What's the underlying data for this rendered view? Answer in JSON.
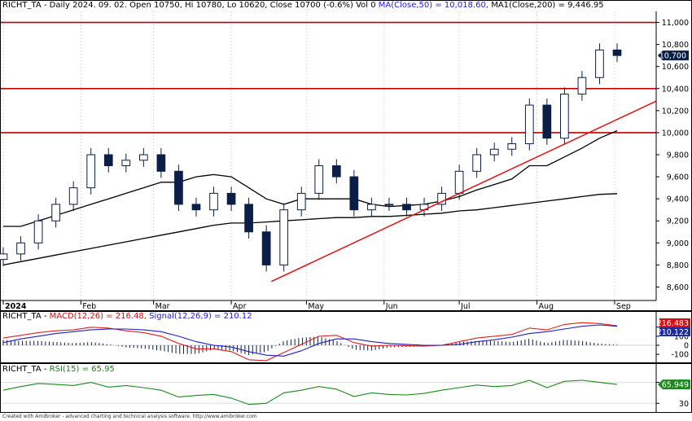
{
  "price_panel": {
    "symbol": "RICHT_TA",
    "header_main": "RICHT_TA - Daily 2024. 09. 02. Open 10750, Hi 10780, Lo 10620, Close 10700 (-0.6%) Vol 0",
    "ma50_text": "MA(Close,50) = 10,018.60,",
    "ma200_text": "MA1(Close,200) = 9,446.95",
    "last_price_label": "10,700",
    "y_ticks": [
      "8,600",
      "8,800",
      "9,000",
      "9,200",
      "9,400",
      "9,600",
      "9,800",
      "10,000",
      "10,200",
      "10,400",
      "10,600",
      "10,800",
      "11,000"
    ],
    "x_labels": [
      "2024",
      "Feb",
      "Mar",
      "Apr",
      "May",
      "Jun",
      "Jul",
      "Aug",
      "Sep"
    ]
  },
  "macd_panel": {
    "title_prefix": "RICHT_TA - ",
    "macd_text": "MACD(12,26) = 216.48,",
    "signal_text": "Signal(12,26,9) = 210.12",
    "macd_value_label": "216.483",
    "signal_value_label": "210.122",
    "y_ticks": [
      "200",
      "100",
      "0",
      "-100"
    ]
  },
  "rsi_panel": {
    "title_prefix": "RICHT_TA - ",
    "rsi_text": "RSI(15) = 65.95",
    "value_label": "65.949",
    "y_ticks": [
      "70",
      "30"
    ]
  },
  "footer": "Created with AmiBroker - advanced charting and technical analysis software. http://www.amibroker.com",
  "colors": {
    "candle": "#0a1e46",
    "ma50": "#000000",
    "ma200": "#000000",
    "level_line": "#c00000",
    "trend_line": "#e01010",
    "macd": "#e02020",
    "signal": "#2020c0",
    "histogram": "#0a1e46",
    "rsi": "#1a8a1a",
    "macd_label_bg": "#d01010",
    "signal_label_bg": "#1a2aa0",
    "rsi_label_bg": "#1a8a1a"
  },
  "chart_data": [
    {
      "type": "candlestick",
      "ylim": [
        8500,
        11100
      ],
      "horizontal_levels": [
        11000,
        10400,
        10000
      ],
      "trendline": [
        [
          "2024-04-17",
          8650
        ],
        [
          "2024-09-02",
          10120
        ]
      ],
      "x": [
        "2024-01-01",
        "2024-01-08",
        "2024-01-15",
        "2024-01-22",
        "2024-01-29",
        "2024-02-05",
        "2024-02-12",
        "2024-02-19",
        "2024-02-26",
        "2024-03-04",
        "2024-03-11",
        "2024-03-18",
        "2024-03-25",
        "2024-04-01",
        "2024-04-08",
        "2024-04-15",
        "2024-04-22",
        "2024-04-29",
        "2024-05-06",
        "2024-05-13",
        "2024-05-20",
        "2024-05-27",
        "2024-06-03",
        "2024-06-10",
        "2024-06-17",
        "2024-06-24",
        "2024-07-01",
        "2024-07-08",
        "2024-07-15",
        "2024-07-22",
        "2024-07-29",
        "2024-08-05",
        "2024-08-12",
        "2024-08-19",
        "2024-08-26",
        "2024-09-02"
      ],
      "close": [
        8900,
        9000,
        9200,
        9350,
        9500,
        9800,
        9700,
        9750,
        9800,
        9650,
        9350,
        9300,
        9450,
        9350,
        9100,
        8800,
        9300,
        9450,
        9700,
        9600,
        9300,
        9350,
        9350,
        9300,
        9350,
        9450,
        9650,
        9800,
        9850,
        9900,
        10250,
        9950,
        10350,
        10500,
        10750,
        10700
      ],
      "series": [
        {
          "name": "MA(Close,50)",
          "values": [
            9150,
            9150,
            9200,
            9250,
            9300,
            9350,
            9400,
            9450,
            9500,
            9550,
            9550,
            9600,
            9620,
            9600,
            9500,
            9400,
            9350,
            9400,
            9400,
            9400,
            9400,
            9350,
            9330,
            9340,
            9350,
            9380,
            9420,
            9480,
            9530,
            9580,
            9700,
            9700,
            9780,
            9860,
            9950,
            10018
          ]
        },
        {
          "name": "MA1(Close,200)",
          "values": [
            8800,
            8830,
            8860,
            8890,
            8920,
            8950,
            8980,
            9010,
            9040,
            9070,
            9100,
            9130,
            9160,
            9180,
            9180,
            9190,
            9200,
            9210,
            9220,
            9230,
            9230,
            9240,
            9240,
            9250,
            9260,
            9270,
            9290,
            9300,
            9320,
            9340,
            9360,
            9380,
            9400,
            9420,
            9440,
            9447
          ]
        }
      ]
    },
    {
      "type": "line",
      "ylim": [
        -180,
        270
      ],
      "series": [
        {
          "name": "MACD(12,26)",
          "values": [
            80,
            110,
            140,
            160,
            170,
            200,
            190,
            160,
            140,
            100,
            20,
            -40,
            -40,
            -70,
            -160,
            -170,
            -80,
            10,
            100,
            110,
            30,
            -10,
            0,
            -5,
            -10,
            0,
            40,
            80,
            100,
            120,
            190,
            170,
            230,
            250,
            240,
            216
          ]
        },
        {
          "name": "Signal(12,26,9)",
          "values": [
            30,
            70,
            100,
            130,
            150,
            170,
            180,
            180,
            170,
            150,
            100,
            40,
            0,
            -20,
            -70,
            -110,
            -120,
            -60,
            20,
            70,
            70,
            40,
            20,
            10,
            0,
            0,
            10,
            40,
            60,
            90,
            130,
            150,
            180,
            210,
            225,
            210
          ]
        }
      ]
    },
    {
      "type": "line",
      "ylim": [
        18,
        88
      ],
      "series": [
        {
          "name": "RSI(15)",
          "values": [
            55,
            62,
            68,
            66,
            64,
            70,
            61,
            64,
            60,
            55,
            42,
            45,
            47,
            40,
            28,
            30,
            50,
            55,
            62,
            57,
            43,
            50,
            47,
            46,
            49,
            55,
            60,
            65,
            62,
            64,
            74,
            60,
            72,
            74,
            70,
            66
          ]
        }
      ]
    }
  ]
}
